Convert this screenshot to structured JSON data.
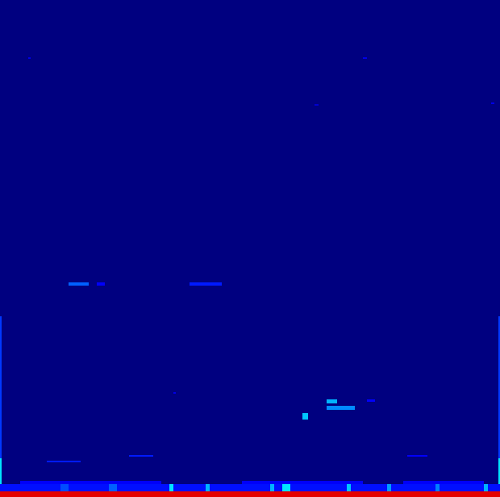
{
  "chart_data": {
    "type": "heatmap",
    "xlim": [
      0,
      124
    ],
    "ylim": [
      0,
      154
    ],
    "tick_labels": false,
    "background_value": 0,
    "color_range": [
      0,
      1
    ],
    "cells": [
      {
        "x": [
          0,
          124
        ],
        "y": [
          0,
          1.75
        ],
        "value": 0.9
      },
      {
        "x": [
          0,
          124
        ],
        "y": [
          1.75,
          4
        ],
        "value": 0.14
      },
      {
        "x": [
          15,
          17
        ],
        "y": [
          1.75,
          4
        ],
        "value": 0.2
      },
      {
        "x": [
          27,
          29
        ],
        "y": [
          1.75,
          4
        ],
        "value": 0.22
      },
      {
        "x": [
          42,
          43
        ],
        "y": [
          1.75,
          4
        ],
        "value": 0.35
      },
      {
        "x": [
          51,
          52
        ],
        "y": [
          1.75,
          4
        ],
        "value": 0.3
      },
      {
        "x": [
          67,
          68
        ],
        "y": [
          1.75,
          4
        ],
        "value": 0.3
      },
      {
        "x": [
          70,
          72
        ],
        "y": [
          1.75,
          4
        ],
        "value": 0.35
      },
      {
        "x": [
          86,
          87
        ],
        "y": [
          1.75,
          4
        ],
        "value": 0.32
      },
      {
        "x": [
          96,
          97
        ],
        "y": [
          1.75,
          4
        ],
        "value": 0.28
      },
      {
        "x": [
          108,
          109
        ],
        "y": [
          1.75,
          4
        ],
        "value": 0.25
      },
      {
        "x": [
          120,
          121
        ],
        "y": [
          1.75,
          4
        ],
        "value": 0.3
      },
      {
        "x": [
          5,
          40
        ],
        "y": [
          4,
          5
        ],
        "value": 0.12
      },
      {
        "x": [
          60,
          90
        ],
        "y": [
          4,
          5
        ],
        "value": 0.12
      },
      {
        "x": [
          100,
          120
        ],
        "y": [
          4,
          5
        ],
        "value": 0.12
      },
      {
        "x": [
          0,
          0.4
        ],
        "y": [
          4,
          12
        ],
        "value": 0.35
      },
      {
        "x": [
          0,
          0.4
        ],
        "y": [
          12,
          56
        ],
        "value": 0.18
      },
      {
        "x": [
          123.6,
          124
        ],
        "y": [
          4,
          12
        ],
        "value": 0.35
      },
      {
        "x": [
          123.6,
          124
        ],
        "y": [
          12,
          56
        ],
        "value": 0.18
      },
      {
        "x": [
          17,
          22
        ],
        "y": [
          65.5,
          66.5
        ],
        "value": 0.22
      },
      {
        "x": [
          24,
          26
        ],
        "y": [
          65.5,
          66.5
        ],
        "value": 0.12
      },
      {
        "x": [
          47,
          55
        ],
        "y": [
          65.5,
          66.5
        ],
        "value": 0.15
      },
      {
        "x": [
          81,
          83.6
        ],
        "y": [
          29,
          30.25
        ],
        "value": 0.3
      },
      {
        "x": [
          81,
          88
        ],
        "y": [
          27,
          28.25
        ],
        "value": 0.26
      },
      {
        "x": [
          75,
          76.4
        ],
        "y": [
          24,
          26
        ],
        "value": 0.32
      },
      {
        "x": [
          91,
          93
        ],
        "y": [
          29.5,
          30.25
        ],
        "value": 0.12
      },
      {
        "x": [
          11.5,
          20
        ],
        "y": [
          10.75,
          11.25
        ],
        "value": 0.15
      },
      {
        "x": [
          32,
          38
        ],
        "y": [
          12.5,
          13
        ],
        "value": 0.15
      },
      {
        "x": [
          101,
          106
        ],
        "y": [
          12.5,
          13
        ],
        "value": 0.12
      },
      {
        "x": [
          7,
          7.6
        ],
        "y": [
          135.75,
          136.25
        ],
        "value": 0.1
      },
      {
        "x": [
          90,
          91
        ],
        "y": [
          135.75,
          136.25
        ],
        "value": 0.1
      },
      {
        "x": [
          78,
          79
        ],
        "y": [
          121.3,
          121.8
        ],
        "value": 0.08
      },
      {
        "x": [
          121.8,
          122.6
        ],
        "y": [
          121.8,
          122.3
        ],
        "value": 0.1
      },
      {
        "x": [
          43,
          43.6
        ],
        "y": [
          32,
          32.5
        ],
        "value": 0.1
      }
    ]
  }
}
